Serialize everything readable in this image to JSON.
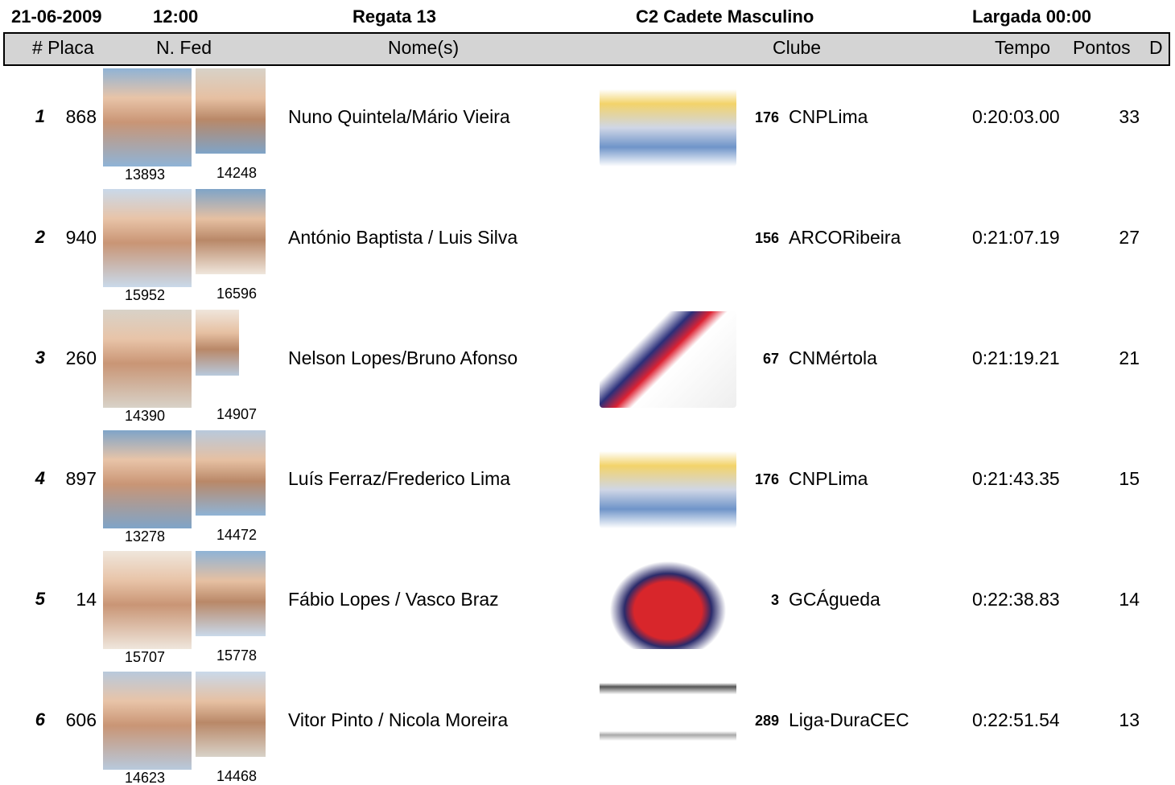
{
  "header": {
    "date": "21-06-2009",
    "time": "12:00",
    "regatta": "Regata  13",
    "category": "C2 Cadete Masculino",
    "start": "Largada 00:00"
  },
  "columns": [
    "# Placa",
    "N. Fed",
    "Nome(s)",
    "Clube",
    "Tempo",
    "Pontos",
    "D"
  ],
  "rows": [
    {
      "rank": 1,
      "placa": 868,
      "fed1": 13893,
      "fed2": 14248,
      "names": "Nuno Quintela/Mário Vieira",
      "club_num": 176,
      "club": "CNPLima",
      "time": "0:20:03.00",
      "points": 33
    },
    {
      "rank": 2,
      "placa": 940,
      "fed1": 15952,
      "fed2": 16596,
      "names": "António Baptista / Luis Silva",
      "club_num": 156,
      "club": "ARCORibeira",
      "time": "0:21:07.19",
      "points": 27
    },
    {
      "rank": 3,
      "placa": 260,
      "fed1": 14390,
      "fed2": 14907,
      "names": "Nelson Lopes/Bruno Afonso",
      "club_num": 67,
      "club": "CNMértola",
      "time": "0:21:19.21",
      "points": 21
    },
    {
      "rank": 4,
      "placa": 897,
      "fed1": 13278,
      "fed2": 14472,
      "names": "Luís Ferraz/Frederico Lima",
      "club_num": 176,
      "club": "CNPLima",
      "time": "0:21:43.35",
      "points": 15
    },
    {
      "rank": 5,
      "placa": 14,
      "fed1": 15707,
      "fed2": 15778,
      "names": "Fábio Lopes / Vasco Braz",
      "club_num": 3,
      "club": "GCÁgueda",
      "time": "0:22:38.83",
      "points": 14
    },
    {
      "rank": 6,
      "placa": 606,
      "fed1": 14623,
      "fed2": 14468,
      "names": "Vitor Pinto / Nicola Moreira",
      "club_num": 289,
      "club": "Liga-DuraCEC",
      "time": "0:22:51.54",
      "points": 13
    }
  ]
}
